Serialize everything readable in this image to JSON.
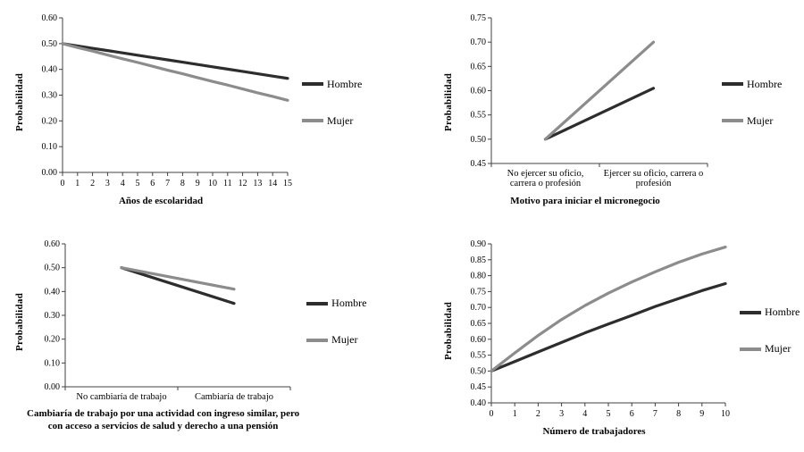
{
  "legend": {
    "hombre": "Hombre",
    "mujer": "Mujer"
  },
  "colors": {
    "hombre": "#2d2d2d",
    "mujer": "#8c8c8c",
    "axis": "#404040"
  },
  "chart_data": [
    {
      "id": "anos-de-escolaridad",
      "type": "line",
      "title": "",
      "xlabel": "Años de escolaridad",
      "ylabel": "Probabilidad",
      "x_type": "numeric",
      "x": [
        0,
        1,
        2,
        3,
        4,
        5,
        6,
        7,
        8,
        9,
        10,
        11,
        12,
        13,
        14,
        15
      ],
      "ylim": [
        0.0,
        0.6
      ],
      "ytick_step": 0.1,
      "grid": false,
      "legend_position": "right",
      "series": [
        {
          "name": "Hombre",
          "values": [
            0.5,
            0.491,
            0.482,
            0.473,
            0.464,
            0.455,
            0.446,
            0.437,
            0.428,
            0.419,
            0.41,
            0.401,
            0.392,
            0.383,
            0.374,
            0.365
          ]
        },
        {
          "name": "Mujer",
          "values": [
            0.5,
            0.485,
            0.471,
            0.456,
            0.441,
            0.427,
            0.412,
            0.397,
            0.383,
            0.368,
            0.353,
            0.339,
            0.324,
            0.309,
            0.295,
            0.28
          ]
        }
      ]
    },
    {
      "id": "motivo-micronegocio",
      "type": "line",
      "title": "",
      "xlabel": "Motivo para iniciar el micronegocio",
      "ylabel": "Probabilidad",
      "x_type": "category",
      "categories": [
        "No ejercer su oficio,\ncarrera o profesión",
        "Ejercer su oficio, carrera o\nprofesión"
      ],
      "ylim": [
        0.45,
        0.75
      ],
      "ytick_step": 0.05,
      "grid": false,
      "legend_position": "right",
      "series": [
        {
          "name": "Hombre",
          "values": [
            0.5,
            0.605
          ]
        },
        {
          "name": "Mujer",
          "values": [
            0.5,
            0.7
          ]
        }
      ]
    },
    {
      "id": "cambiaria-de-trabajo",
      "type": "line",
      "title": "",
      "xlabel": "Cambiaría de trabajo por una actividad con ingreso similar, pero\ncon acceso a servicios de salud y derecho a una pensión",
      "ylabel": "Probabilidad",
      "x_type": "category",
      "categories": [
        "No cambiaría de trabajo",
        "Cambiaría de trabajo"
      ],
      "ylim": [
        0.0,
        0.6
      ],
      "ytick_step": 0.1,
      "grid": false,
      "legend_position": "right",
      "series": [
        {
          "name": "Hombre",
          "values": [
            0.5,
            0.35
          ]
        },
        {
          "name": "Mujer",
          "values": [
            0.5,
            0.41
          ]
        }
      ]
    },
    {
      "id": "numero-de-trabajadores",
      "type": "line",
      "title": "",
      "xlabel": "Número de trabajadores",
      "ylabel": "Probabilidad",
      "x_type": "numeric",
      "x": [
        0,
        1,
        2,
        3,
        4,
        5,
        6,
        7,
        8,
        9,
        10
      ],
      "ylim": [
        0.4,
        0.9
      ],
      "ytick_step": 0.05,
      "grid": false,
      "legend_position": "right",
      "series": [
        {
          "name": "Hombre",
          "values": [
            0.5,
            0.53,
            0.56,
            0.59,
            0.62,
            0.648,
            0.675,
            0.703,
            0.728,
            0.753,
            0.775
          ]
        },
        {
          "name": "Mujer",
          "values": [
            0.5,
            0.557,
            0.612,
            0.662,
            0.706,
            0.745,
            0.78,
            0.812,
            0.842,
            0.868,
            0.89
          ]
        }
      ]
    }
  ]
}
